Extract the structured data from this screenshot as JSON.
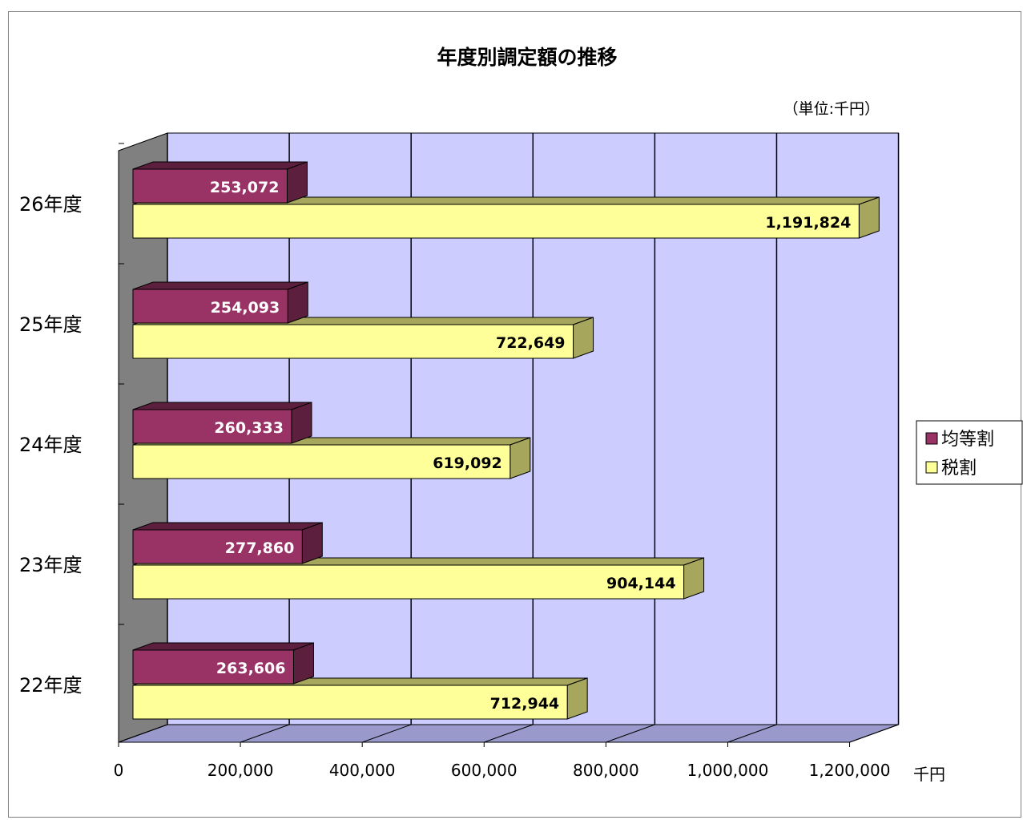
{
  "chart_data": {
    "type": "bar",
    "orientation": "horizontal",
    "style": "3d-clustered",
    "title": "年度別調定額の推移",
    "unit_note": "（単位:千円）",
    "x_unit_label": "千円",
    "categories": [
      "22年度",
      "23年度",
      "24年度",
      "25年度",
      "26年度"
    ],
    "series": [
      {
        "name": "均等割",
        "values": [
          263606,
          277860,
          260333,
          254093,
          253072
        ],
        "labels": [
          "263,606",
          "277,860",
          "260,333",
          "254,093",
          "253,072"
        ]
      },
      {
        "name": "税割",
        "values": [
          712944,
          904144,
          619092,
          722649,
          1191824
        ],
        "labels": [
          "712,944",
          "904,144",
          "619,092",
          "722,649",
          "1,191,824"
        ]
      }
    ],
    "xlim": [
      0,
      1200000
    ],
    "x_ticks": [
      0,
      200000,
      400000,
      600000,
      800000,
      1000000,
      1200000
    ],
    "x_tick_labels": [
      "0",
      "200,000",
      "400,000",
      "600,000",
      "800,000",
      "1,000,000",
      "1,200,000"
    ],
    "grid": true,
    "legend_position": "right",
    "colors": {
      "series_1_front": "#993366",
      "series_1_side": "#5c1f3d",
      "series_2_front": "#ffff99",
      "series_2_side": "#a6a65c",
      "plot_wall": "#ccccff",
      "plot_floor": "#9999cc",
      "left_wall": "#808080",
      "gridline": "#000000"
    }
  }
}
